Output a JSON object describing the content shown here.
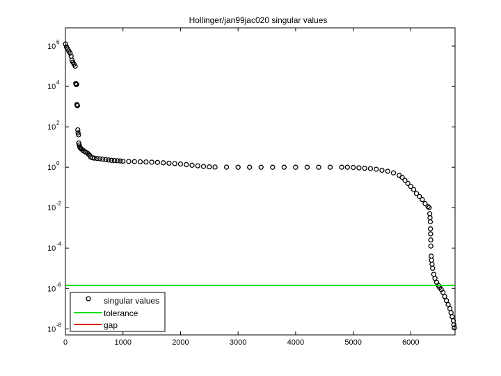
{
  "chart_data": {
    "type": "scatter",
    "title": "Hollinger/jan99jac020 singular values",
    "xlabel": "",
    "ylabel": "",
    "xlim": [
      0,
      6770
    ],
    "ylim_log10": [
      -8.3,
      6.9
    ],
    "y_scale": "log",
    "x_ticks": [
      0,
      1000,
      2000,
      3000,
      4000,
      5000,
      6000
    ],
    "x_tick_labels": [
      "0",
      "1000",
      "2000",
      "3000",
      "4000",
      "5000",
      "6000"
    ],
    "y_ticks_log10": [
      6,
      4,
      2,
      0,
      -2,
      -4,
      -6,
      -8
    ],
    "y_tick_bases": [
      "10",
      "10",
      "10",
      "10",
      "10",
      "10",
      "10",
      "10"
    ],
    "y_tick_exponents": [
      "6",
      "4",
      "2",
      "0",
      "-2",
      "-4",
      "-6",
      "-8"
    ],
    "grid": false,
    "legend_position": "bottom-left",
    "series": [
      {
        "name": "singular values",
        "marker": "circle",
        "color": "#000000",
        "points_log10": [
          [
            1,
            6.1
          ],
          [
            20,
            5.95
          ],
          [
            40,
            5.85
          ],
          [
            60,
            5.75
          ],
          [
            80,
            5.65
          ],
          [
            100,
            5.5
          ],
          [
            115,
            5.3
          ],
          [
            130,
            5.2
          ],
          [
            150,
            5.1
          ],
          [
            170,
            5.0
          ],
          [
            180,
            4.15
          ],
          [
            185,
            4.1
          ],
          [
            195,
            4.1
          ],
          [
            200,
            3.1
          ],
          [
            205,
            3.05
          ],
          [
            210,
            3.05
          ],
          [
            215,
            1.85
          ],
          [
            220,
            1.7
          ],
          [
            228,
            1.6
          ],
          [
            232,
            1.2
          ],
          [
            240,
            1.1
          ],
          [
            250,
            1.0
          ],
          [
            260,
            0.95
          ],
          [
            280,
            0.9
          ],
          [
            300,
            0.85
          ],
          [
            320,
            0.8
          ],
          [
            350,
            0.75
          ],
          [
            380,
            0.7
          ],
          [
            400,
            0.65
          ],
          [
            420,
            0.6
          ],
          [
            440,
            0.5
          ],
          [
            470,
            0.47
          ],
          [
            500,
            0.45
          ],
          [
            550,
            0.43
          ],
          [
            600,
            0.42
          ],
          [
            650,
            0.4
          ],
          [
            700,
            0.38
          ],
          [
            750,
            0.36
          ],
          [
            800,
            0.34
          ],
          [
            850,
            0.33
          ],
          [
            900,
            0.32
          ],
          [
            950,
            0.31
          ],
          [
            1000,
            0.3
          ],
          [
            1100,
            0.29
          ],
          [
            1200,
            0.28
          ],
          [
            1300,
            0.27
          ],
          [
            1400,
            0.26
          ],
          [
            1500,
            0.25
          ],
          [
            1600,
            0.24
          ],
          [
            1700,
            0.22
          ],
          [
            1800,
            0.2
          ],
          [
            1900,
            0.18
          ],
          [
            2000,
            0.16
          ],
          [
            2100,
            0.13
          ],
          [
            2200,
            0.1
          ],
          [
            2300,
            0.07
          ],
          [
            2400,
            0.04
          ],
          [
            2500,
            0.02
          ],
          [
            2600,
            0.01
          ],
          [
            2800,
            0.005
          ],
          [
            3000,
            0.0
          ],
          [
            3200,
            0.0
          ],
          [
            3400,
            0.0
          ],
          [
            3600,
            0.0
          ],
          [
            3800,
            0.0
          ],
          [
            4000,
            0.0
          ],
          [
            4200,
            0.0
          ],
          [
            4400,
            0.0
          ],
          [
            4600,
            0.0
          ],
          [
            4800,
            0.0
          ],
          [
            4900,
            0.0
          ],
          [
            5000,
            -0.01
          ],
          [
            5100,
            -0.03
          ],
          [
            5200,
            -0.05
          ],
          [
            5300,
            -0.07
          ],
          [
            5400,
            -0.1
          ],
          [
            5500,
            -0.15
          ],
          [
            5600,
            -0.2
          ],
          [
            5700,
            -0.28
          ],
          [
            5800,
            -0.4
          ],
          [
            5850,
            -0.5
          ],
          [
            5900,
            -0.65
          ],
          [
            5950,
            -0.8
          ],
          [
            6000,
            -0.95
          ],
          [
            6050,
            -1.1
          ],
          [
            6100,
            -1.3
          ],
          [
            6150,
            -1.45
          ],
          [
            6200,
            -1.6
          ],
          [
            6250,
            -1.8
          ],
          [
            6300,
            -1.95
          ],
          [
            6320,
            -2.0
          ],
          [
            6330,
            -2.3
          ],
          [
            6335,
            -2.5
          ],
          [
            6340,
            -2.7
          ],
          [
            6342,
            -3.05
          ],
          [
            6345,
            -3.3
          ],
          [
            6348,
            -3.6
          ],
          [
            6350,
            -3.9
          ],
          [
            6355,
            -4.4
          ],
          [
            6360,
            -4.6
          ],
          [
            6370,
            -4.8
          ],
          [
            6380,
            -5.0
          ],
          [
            6400,
            -5.3
          ],
          [
            6420,
            -5.5
          ],
          [
            6450,
            -5.7
          ],
          [
            6480,
            -5.85
          ],
          [
            6500,
            -5.95
          ],
          [
            6530,
            -6.05
          ],
          [
            6560,
            -6.2
          ],
          [
            6590,
            -6.4
          ],
          [
            6620,
            -6.6
          ],
          [
            6650,
            -6.8
          ],
          [
            6680,
            -7.0
          ],
          [
            6700,
            -7.2
          ],
          [
            6720,
            -7.4
          ],
          [
            6740,
            -7.6
          ],
          [
            6750,
            -7.8
          ],
          [
            6758,
            -7.95
          ]
        ]
      },
      {
        "name": "tolerance",
        "color": "#00dd00",
        "y_log10": -5.85
      },
      {
        "name": "gap",
        "color": "#dd0000"
      }
    ]
  }
}
